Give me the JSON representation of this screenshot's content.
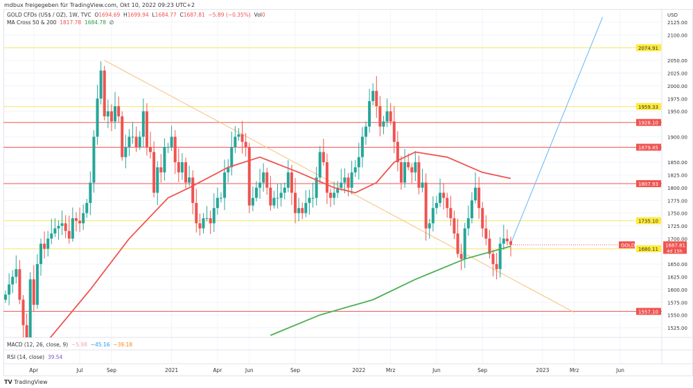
{
  "header": {
    "shared_by": "mdbux freigegeben für TradingView.com, Okt 10, 2022 09:23 UTC+2",
    "symbol": "GOLD CFDs (US$ / OZ), 1W, TVC",
    "o_label": "O",
    "o": "1694.69",
    "h_label": "H",
    "h": "1699.94",
    "l_label": "L",
    "l": "1684.77",
    "c_label": "C",
    "c": "1687.81",
    "change": "−5.89 (−0.35%)",
    "vol_label": "Vol",
    "vol": "0",
    "ma_label": "MA Cross 50 & 200",
    "ma50": "1817.78",
    "ma200": "1684.78",
    "ma_icon": "∅"
  },
  "macd": {
    "label": "MACD (12, 26, close, 9)",
    "hist": "−5.98",
    "macd": "−45.16",
    "signal": "−39.18"
  },
  "rsi": {
    "label": "RSI (14, close)",
    "value": "39.54"
  },
  "footer": {
    "brand": "TradingView"
  },
  "colors": {
    "up": "#26a69a",
    "down": "#ef5350",
    "ma50": "#ef5350",
    "ma200": "#4caf50",
    "yellow": "#f5e663",
    "red_line": "#ef5350",
    "trend": "#f6c177",
    "blue": "#64b5f6"
  },
  "chart_data": {
    "type": "candlestick",
    "currency": "USD",
    "ylim": [
      1500,
      2140
    ],
    "yticks": [
      2125,
      2100,
      2050,
      2025,
      2000,
      1975,
      1950,
      1900,
      1850,
      1825,
      1800,
      1775,
      1750,
      1725,
      1700,
      1650,
      1625,
      1600,
      1575,
      1550,
      1525
    ],
    "xticks": [
      {
        "label": "Apr",
        "week": 8
      },
      {
        "label": "Jul",
        "week": 21
      },
      {
        "label": "Sep",
        "week": 30
      },
      {
        "label": "2021",
        "week": 47
      },
      {
        "label": "Apr",
        "week": 60
      },
      {
        "label": "Jun",
        "week": 69
      },
      {
        "label": "Sep",
        "week": 82
      },
      {
        "label": "2022",
        "week": 100
      },
      {
        "label": "Mrz",
        "week": 109
      },
      {
        "label": "Jun",
        "week": 122
      },
      {
        "label": "Sep",
        "week": 135
      },
      {
        "label": "2023",
        "week": 152
      },
      {
        "label": "Mrz",
        "week": 161
      },
      {
        "label": "Jun",
        "week": 174
      }
    ],
    "xmax_week": 184,
    "closes": [
      1590,
      1610,
      1625,
      1640,
      1580,
      1530,
      1490,
      1620,
      1570,
      1650,
      1690,
      1680,
      1700,
      1710,
      1720,
      1725,
      1730,
      1715,
      1700,
      1740,
      1735,
      1730,
      1750,
      1770,
      1810,
      1900,
      1975,
      2030,
      1940,
      1950,
      1930,
      1960,
      1940,
      1860,
      1880,
      1900,
      1900,
      1880,
      1900,
      1950,
      1880,
      1870,
      1790,
      1840,
      1830,
      1880,
      1880,
      1900,
      1850,
      1830,
      1850,
      1810,
      1820,
      1770,
      1730,
      1720,
      1740,
      1740,
      1730,
      1760,
      1780,
      1780,
      1830,
      1840,
      1880,
      1900,
      1905,
      1890,
      1880,
      1765,
      1780,
      1800,
      1810,
      1830,
      1800,
      1765,
      1780,
      1780,
      1790,
      1800,
      1830,
      1790,
      1750,
      1760,
      1750,
      1770,
      1780,
      1780,
      1820,
      1870,
      1850,
      1790,
      1780,
      1790,
      1800,
      1810,
      1820,
      1800,
      1830,
      1840,
      1860,
      1900,
      1920,
      1970,
      1990,
      1960,
      1920,
      1930,
      1950,
      1930,
      1890,
      1850,
      1810,
      1850,
      1840,
      1830,
      1850,
      1800,
      1810,
      1720,
      1730,
      1760,
      1770,
      1790,
      1780,
      1760,
      1740,
      1710,
      1670,
      1660,
      1720,
      1740,
      1775,
      1800,
      1760,
      1720,
      1700,
      1670,
      1650,
      1640,
      1690,
      1700,
      1694.69,
      1687.81
    ],
    "ma50": [
      [
        12,
        1500
      ],
      [
        24,
        1600
      ],
      [
        35,
        1700
      ],
      [
        46,
        1780
      ],
      [
        52,
        1800
      ],
      [
        63,
        1840
      ],
      [
        72,
        1860
      ],
      [
        83,
        1830
      ],
      [
        93,
        1800
      ],
      [
        99,
        1790
      ],
      [
        105,
        1810
      ],
      [
        110,
        1850
      ],
      [
        116,
        1870
      ],
      [
        125,
        1860
      ],
      [
        135,
        1830
      ],
      [
        143,
        1818
      ]
    ],
    "ma200": [
      [
        75,
        1510
      ],
      [
        89,
        1550
      ],
      [
        104,
        1580
      ],
      [
        116,
        1620
      ],
      [
        130,
        1660
      ],
      [
        143,
        1685
      ]
    ],
    "hlines": [
      {
        "price": 2074.91,
        "label": "2074.91",
        "kind": "yellow"
      },
      {
        "price": 1959.33,
        "label": "1959.33",
        "kind": "yellow"
      },
      {
        "price": 1928.1,
        "label": "1928.10",
        "kind": "red"
      },
      {
        "price": 1879.45,
        "label": "1879.45",
        "kind": "red"
      },
      {
        "price": 1807.93,
        "label": "1807.93",
        "kind": "red"
      },
      {
        "price": 1735.1,
        "label": "1735.10",
        "kind": "yellow"
      },
      {
        "price": 1680.11,
        "label": "1680.11",
        "kind": "yellow"
      },
      {
        "price": 1557.1,
        "label": "1557.10",
        "kind": "red"
      }
    ],
    "trendlines": [
      {
        "kind": "trend",
        "from": [
          28,
          2050
        ],
        "to": [
          161,
          1555
        ]
      },
      {
        "kind": "blue",
        "from": [
          143,
          1690
        ],
        "to": [
          169,
          2135
        ]
      }
    ],
    "last": {
      "symbol": "GOLD",
      "price": "1687.81",
      "countdown": "4d 15h"
    }
  }
}
